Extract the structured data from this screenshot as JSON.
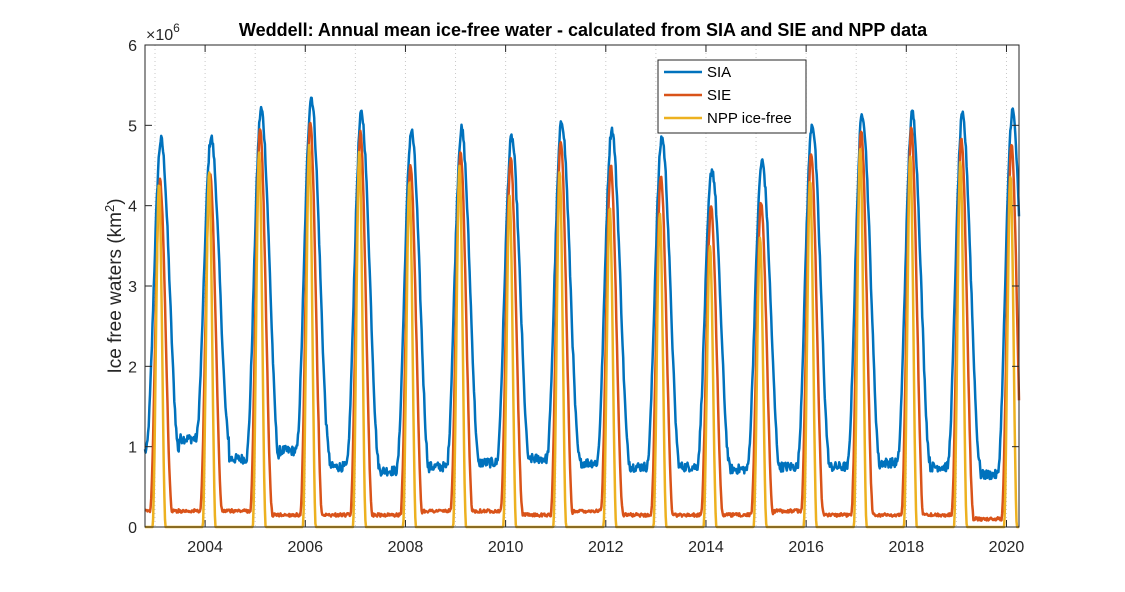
{
  "chart_data": {
    "type": "line",
    "title": "Weddell: Annual mean ice-free water - calculated from SIA and SIE and NPP data",
    "ylabel_main": "Ice free waters (km",
    "ylabel_sup": "2",
    "ylabel_end": ")",
    "exponent_base": "×10",
    "exponent_power": "6",
    "xlabel": "",
    "xlim": [
      2002.8,
      2020.25
    ],
    "ylim": [
      0,
      6
    ],
    "xticks": [
      2004,
      2006,
      2008,
      2010,
      2012,
      2014,
      2016,
      2018,
      2020
    ],
    "yticks": [
      0,
      1,
      2,
      3,
      4,
      5,
      6
    ],
    "grid": "vertical dotted (yearly)",
    "legend_position": "top-right",
    "series": [
      {
        "name": "SIA",
        "color": "#0072BD",
        "peak_years": [
          2003,
          2004,
          2005,
          2006,
          2007,
          2008,
          2009,
          2010,
          2011,
          2012,
          2013,
          2014,
          2015,
          2016,
          2017,
          2018,
          2019,
          2020
        ],
        "peak_values": [
          4.82,
          4.85,
          5.2,
          5.35,
          5.15,
          4.93,
          4.95,
          4.85,
          5.05,
          4.95,
          4.85,
          4.45,
          4.55,
          5.02,
          5.15,
          5.15,
          5.12,
          5.18
        ],
        "trough_values": [
          0.95,
          1.1,
          0.85,
          0.95,
          0.75,
          0.7,
          0.75,
          0.8,
          0.85,
          0.8,
          0.75,
          0.75,
          0.72,
          0.75,
          0.75,
          0.8,
          0.75,
          0.65
        ]
      },
      {
        "name": "SIE",
        "color": "#D95319",
        "peak_years": [
          2003,
          2004,
          2005,
          2006,
          2007,
          2008,
          2009,
          2010,
          2011,
          2012,
          2013,
          2014,
          2015,
          2016,
          2017,
          2018,
          2019,
          2020
        ],
        "peak_values": [
          4.3,
          4.4,
          4.95,
          5.02,
          4.9,
          4.5,
          4.65,
          4.58,
          4.82,
          4.5,
          4.37,
          3.98,
          4.05,
          4.67,
          4.95,
          4.95,
          4.83,
          4.75
        ],
        "trough_values": [
          0.2,
          0.2,
          0.2,
          0.15,
          0.15,
          0.15,
          0.2,
          0.2,
          0.15,
          0.2,
          0.15,
          0.15,
          0.15,
          0.2,
          0.15,
          0.15,
          0.15,
          0.1
        ]
      },
      {
        "name": "NPP ice-free",
        "color": "#EDB120",
        "peak_years": [
          2003,
          2004,
          2005,
          2006,
          2007,
          2008,
          2009,
          2010,
          2011,
          2012,
          2013,
          2014,
          2015,
          2016,
          2017,
          2018,
          2019,
          2020
        ],
        "peak_values": [
          4.27,
          4.42,
          4.67,
          4.75,
          4.68,
          4.3,
          4.5,
          4.12,
          4.42,
          3.98,
          3.9,
          3.5,
          3.6,
          4.32,
          4.72,
          4.62,
          4.55,
          4.38
        ],
        "trough_values": [
          0.0,
          0.0,
          0.0,
          0.0,
          0.0,
          0.0,
          0.0,
          0.0,
          0.0,
          0.0,
          0.0,
          0.0,
          0.0,
          0.0,
          0.0,
          0.0,
          0.0,
          0.0
        ]
      }
    ]
  }
}
